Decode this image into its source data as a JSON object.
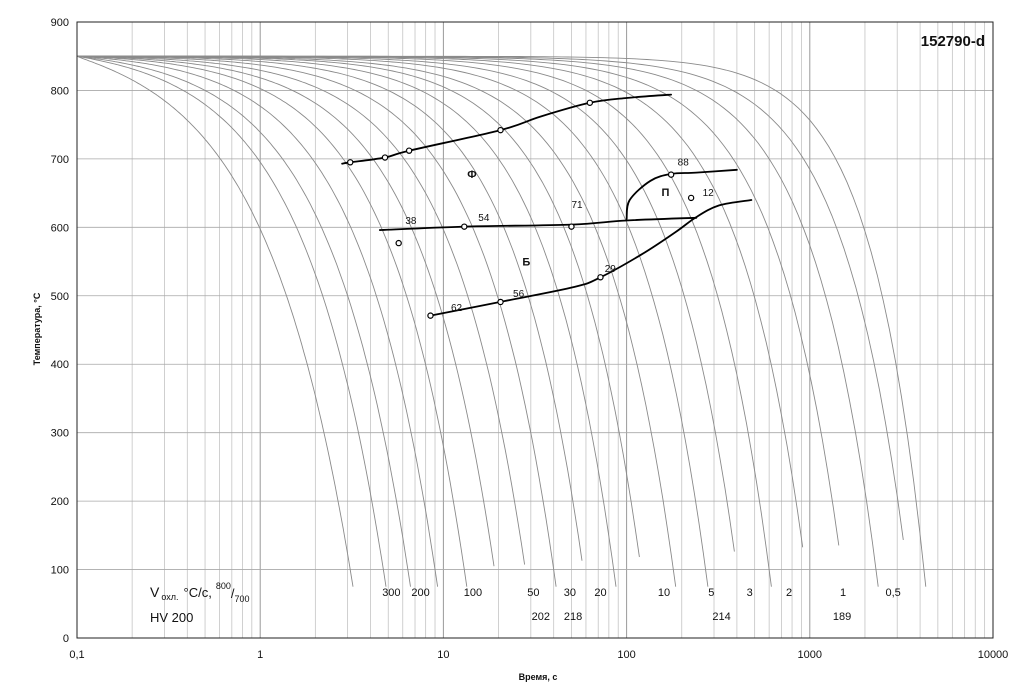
{
  "chart_data": {
    "type": "line",
    "title": "152790-d",
    "xlabel": "Время, с",
    "ylabel": "Температура, °С",
    "x_scale": "log",
    "xlim": [
      0.1,
      10000
    ],
    "ylim": [
      0,
      900
    ],
    "x_ticks": [
      0.1,
      1,
      10,
      100,
      1000,
      10000
    ],
    "x_tick_labels": [
      "0,1",
      "1",
      "10",
      "100",
      "1000",
      "10000"
    ],
    "y_ticks": [
      0,
      100,
      200,
      300,
      400,
      500,
      600,
      700,
      800,
      900
    ],
    "y_tick_labels": [
      "0",
      "100",
      "200",
      "300",
      "400",
      "500",
      "600",
      "700",
      "800",
      "900"
    ],
    "grid": true,
    "cooling_curves": {
      "start_temperature": 850,
      "x_at_800": [
        0.25,
        0.38,
        0.5,
        0.72,
        1.05,
        1.5,
        2.2,
        3.3,
        5,
        7.5,
        11,
        16,
        25,
        38,
        60,
        95,
        150,
        240,
        380,
        650
      ],
      "x_at_100": [
        3.1,
        4.7,
        6.4,
        9,
        13,
        19,
        28,
        40,
        58,
        85,
        120,
        180,
        270,
        400,
        600,
        950,
        1500,
        2300,
        3400,
        4200
      ]
    },
    "transformation_lines": [
      {
        "name": "ferrite_start",
        "points": [
          [
            2.8,
            693
          ],
          [
            3.1,
            695
          ],
          [
            4.8,
            702
          ],
          [
            6.5,
            712
          ],
          [
            20.5,
            742
          ],
          [
            34,
            762
          ],
          [
            63,
            782
          ],
          [
            100,
            789
          ],
          [
            175,
            794
          ]
        ]
      },
      {
        "name": "bainite_start",
        "points": [
          [
            4.5,
            596
          ],
          [
            13,
            601
          ],
          [
            50,
            604
          ],
          [
            100,
            610
          ],
          [
            240,
            614
          ]
        ]
      },
      {
        "name": "pearlite_start",
        "points": [
          [
            100,
            612
          ],
          [
            104,
            640
          ],
          [
            135,
            668
          ],
          [
            175,
            678
          ],
          [
            240,
            680
          ],
          [
            400,
            684
          ]
        ]
      },
      {
        "name": "bainite_finish",
        "points": [
          [
            8.5,
            471
          ],
          [
            20.5,
            491
          ],
          [
            52,
            513
          ],
          [
            72,
            527
          ],
          [
            120,
            560
          ],
          [
            185,
            593
          ],
          [
            240,
            615
          ],
          [
            320,
            632
          ],
          [
            480,
            640
          ]
        ]
      }
    ],
    "markers": [
      [
        3.1,
        695
      ],
      [
        4.8,
        702
      ],
      [
        6.5,
        712
      ],
      [
        20.5,
        742
      ],
      [
        63,
        782
      ],
      [
        13,
        601
      ],
      [
        50,
        601
      ],
      [
        5.7,
        577
      ],
      [
        175,
        677
      ],
      [
        225,
        643
      ],
      [
        8.5,
        471
      ],
      [
        20.5,
        491
      ],
      [
        72,
        527
      ]
    ],
    "point_labels": [
      {
        "text": "38",
        "x": 6.2,
        "y": 605
      },
      {
        "text": "54",
        "x": 15.5,
        "y": 609
      },
      {
        "text": "71",
        "x": 50,
        "y": 628
      },
      {
        "text": "88",
        "x": 190,
        "y": 690
      },
      {
        "text": "12",
        "x": 260,
        "y": 646
      },
      {
        "text": "62",
        "x": 11,
        "y": 478
      },
      {
        "text": "56",
        "x": 24,
        "y": 498
      },
      {
        "text": "29",
        "x": 76,
        "y": 535
      }
    ],
    "phase_labels": [
      {
        "text": "Ф",
        "x": 13.5,
        "y": 672
      },
      {
        "text": "Б",
        "x": 27,
        "y": 544
      },
      {
        "text": "П",
        "x": 155,
        "y": 646
      }
    ],
    "cooling_rate_label": {
      "main": "V",
      "sub": "охл.",
      "unit": "°С/с,",
      "sup": "800",
      "frac": "/",
      "sub2": "700"
    },
    "cooling_rates": [
      {
        "text": "300",
        "x": 5.2
      },
      {
        "text": "200",
        "x": 7.5
      },
      {
        "text": "100",
        "x": 14.5
      },
      {
        "text": "50",
        "x": 31
      },
      {
        "text": "30",
        "x": 49
      },
      {
        "text": "20",
        "x": 72
      },
      {
        "text": "10",
        "x": 160
      },
      {
        "text": "5",
        "x": 290
      },
      {
        "text": "3",
        "x": 470
      },
      {
        "text": "2",
        "x": 770
      },
      {
        "text": "1",
        "x": 1520
      },
      {
        "text": "0,5",
        "x": 2850
      }
    ],
    "hardness_label": "HV 200",
    "hardness_values": [
      {
        "text": "202",
        "x": 34
      },
      {
        "text": "218",
        "x": 51
      },
      {
        "text": "214",
        "x": 330
      },
      {
        "text": "189",
        "x": 1500
      }
    ]
  }
}
